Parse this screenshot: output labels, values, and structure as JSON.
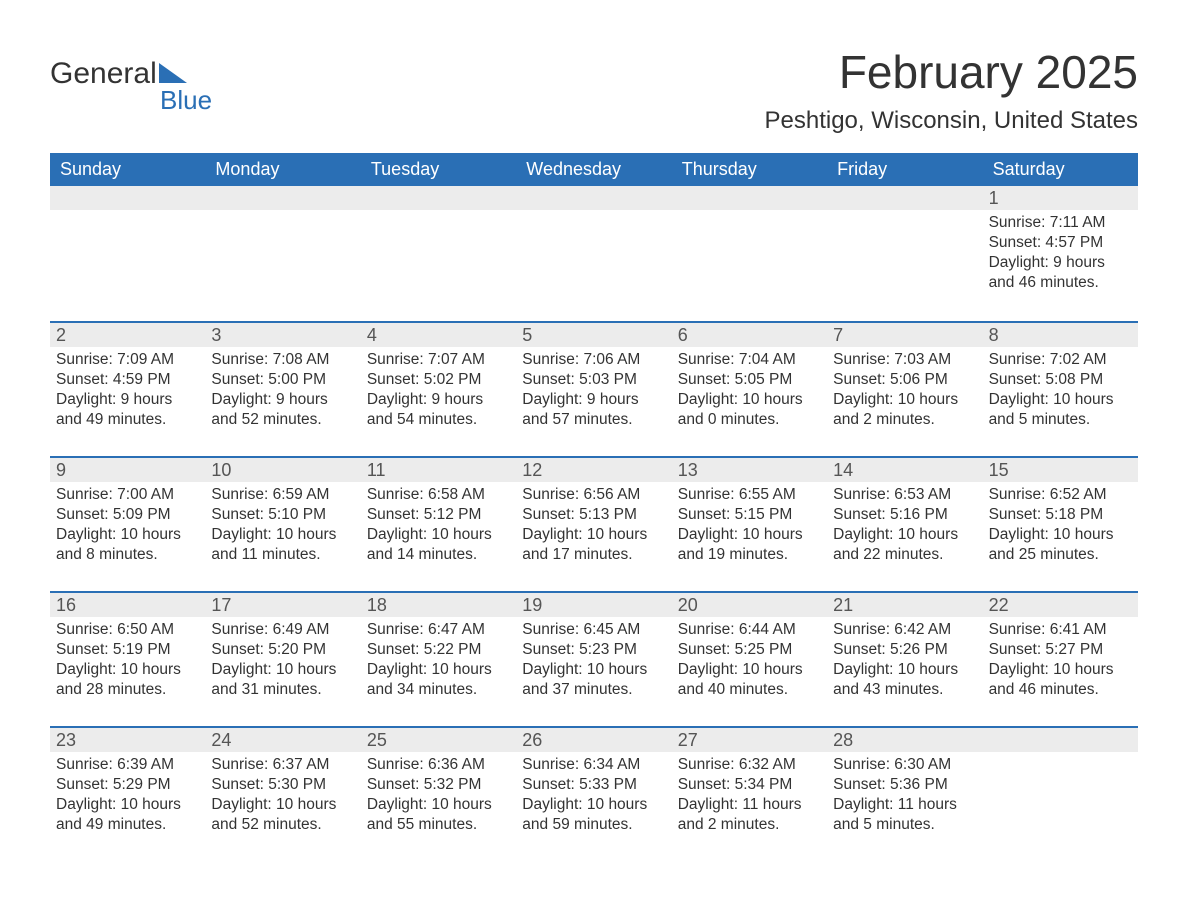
{
  "logo": {
    "word1": "General",
    "word2": "Blue"
  },
  "header": {
    "month_title": "February 2025",
    "location": "Peshtigo, Wisconsin, United States"
  },
  "colors": {
    "header_bg": "#2a6fb5",
    "header_text": "#ffffff",
    "daybar_bg": "#ececec",
    "row_divider": "#2a6fb5",
    "body_text": "#333333"
  },
  "weekdays": [
    "Sunday",
    "Monday",
    "Tuesday",
    "Wednesday",
    "Thursday",
    "Friday",
    "Saturday"
  ],
  "weeks": [
    [
      {
        "day": "",
        "sunrise": "",
        "sunset": "",
        "daylight": ""
      },
      {
        "day": "",
        "sunrise": "",
        "sunset": "",
        "daylight": ""
      },
      {
        "day": "",
        "sunrise": "",
        "sunset": "",
        "daylight": ""
      },
      {
        "day": "",
        "sunrise": "",
        "sunset": "",
        "daylight": ""
      },
      {
        "day": "",
        "sunrise": "",
        "sunset": "",
        "daylight": ""
      },
      {
        "day": "",
        "sunrise": "",
        "sunset": "",
        "daylight": ""
      },
      {
        "day": "1",
        "sunrise": "Sunrise: 7:11 AM",
        "sunset": "Sunset: 4:57 PM",
        "daylight": "Daylight: 9 hours and 46 minutes."
      }
    ],
    [
      {
        "day": "2",
        "sunrise": "Sunrise: 7:09 AM",
        "sunset": "Sunset: 4:59 PM",
        "daylight": "Daylight: 9 hours and 49 minutes."
      },
      {
        "day": "3",
        "sunrise": "Sunrise: 7:08 AM",
        "sunset": "Sunset: 5:00 PM",
        "daylight": "Daylight: 9 hours and 52 minutes."
      },
      {
        "day": "4",
        "sunrise": "Sunrise: 7:07 AM",
        "sunset": "Sunset: 5:02 PM",
        "daylight": "Daylight: 9 hours and 54 minutes."
      },
      {
        "day": "5",
        "sunrise": "Sunrise: 7:06 AM",
        "sunset": "Sunset: 5:03 PM",
        "daylight": "Daylight: 9 hours and 57 minutes."
      },
      {
        "day": "6",
        "sunrise": "Sunrise: 7:04 AM",
        "sunset": "Sunset: 5:05 PM",
        "daylight": "Daylight: 10 hours and 0 minutes."
      },
      {
        "day": "7",
        "sunrise": "Sunrise: 7:03 AM",
        "sunset": "Sunset: 5:06 PM",
        "daylight": "Daylight: 10 hours and 2 minutes."
      },
      {
        "day": "8",
        "sunrise": "Sunrise: 7:02 AM",
        "sunset": "Sunset: 5:08 PM",
        "daylight": "Daylight: 10 hours and 5 minutes."
      }
    ],
    [
      {
        "day": "9",
        "sunrise": "Sunrise: 7:00 AM",
        "sunset": "Sunset: 5:09 PM",
        "daylight": "Daylight: 10 hours and 8 minutes."
      },
      {
        "day": "10",
        "sunrise": "Sunrise: 6:59 AM",
        "sunset": "Sunset: 5:10 PM",
        "daylight": "Daylight: 10 hours and 11 minutes."
      },
      {
        "day": "11",
        "sunrise": "Sunrise: 6:58 AM",
        "sunset": "Sunset: 5:12 PM",
        "daylight": "Daylight: 10 hours and 14 minutes."
      },
      {
        "day": "12",
        "sunrise": "Sunrise: 6:56 AM",
        "sunset": "Sunset: 5:13 PM",
        "daylight": "Daylight: 10 hours and 17 minutes."
      },
      {
        "day": "13",
        "sunrise": "Sunrise: 6:55 AM",
        "sunset": "Sunset: 5:15 PM",
        "daylight": "Daylight: 10 hours and 19 minutes."
      },
      {
        "day": "14",
        "sunrise": "Sunrise: 6:53 AM",
        "sunset": "Sunset: 5:16 PM",
        "daylight": "Daylight: 10 hours and 22 minutes."
      },
      {
        "day": "15",
        "sunrise": "Sunrise: 6:52 AM",
        "sunset": "Sunset: 5:18 PM",
        "daylight": "Daylight: 10 hours and 25 minutes."
      }
    ],
    [
      {
        "day": "16",
        "sunrise": "Sunrise: 6:50 AM",
        "sunset": "Sunset: 5:19 PM",
        "daylight": "Daylight: 10 hours and 28 minutes."
      },
      {
        "day": "17",
        "sunrise": "Sunrise: 6:49 AM",
        "sunset": "Sunset: 5:20 PM",
        "daylight": "Daylight: 10 hours and 31 minutes."
      },
      {
        "day": "18",
        "sunrise": "Sunrise: 6:47 AM",
        "sunset": "Sunset: 5:22 PM",
        "daylight": "Daylight: 10 hours and 34 minutes."
      },
      {
        "day": "19",
        "sunrise": "Sunrise: 6:45 AM",
        "sunset": "Sunset: 5:23 PM",
        "daylight": "Daylight: 10 hours and 37 minutes."
      },
      {
        "day": "20",
        "sunrise": "Sunrise: 6:44 AM",
        "sunset": "Sunset: 5:25 PM",
        "daylight": "Daylight: 10 hours and 40 minutes."
      },
      {
        "day": "21",
        "sunrise": "Sunrise: 6:42 AM",
        "sunset": "Sunset: 5:26 PM",
        "daylight": "Daylight: 10 hours and 43 minutes."
      },
      {
        "day": "22",
        "sunrise": "Sunrise: 6:41 AM",
        "sunset": "Sunset: 5:27 PM",
        "daylight": "Daylight: 10 hours and 46 minutes."
      }
    ],
    [
      {
        "day": "23",
        "sunrise": "Sunrise: 6:39 AM",
        "sunset": "Sunset: 5:29 PM",
        "daylight": "Daylight: 10 hours and 49 minutes."
      },
      {
        "day": "24",
        "sunrise": "Sunrise: 6:37 AM",
        "sunset": "Sunset: 5:30 PM",
        "daylight": "Daylight: 10 hours and 52 minutes."
      },
      {
        "day": "25",
        "sunrise": "Sunrise: 6:36 AM",
        "sunset": "Sunset: 5:32 PM",
        "daylight": "Daylight: 10 hours and 55 minutes."
      },
      {
        "day": "26",
        "sunrise": "Sunrise: 6:34 AM",
        "sunset": "Sunset: 5:33 PM",
        "daylight": "Daylight: 10 hours and 59 minutes."
      },
      {
        "day": "27",
        "sunrise": "Sunrise: 6:32 AM",
        "sunset": "Sunset: 5:34 PM",
        "daylight": "Daylight: 11 hours and 2 minutes."
      },
      {
        "day": "28",
        "sunrise": "Sunrise: 6:30 AM",
        "sunset": "Sunset: 5:36 PM",
        "daylight": "Daylight: 11 hours and 5 minutes."
      },
      {
        "day": "",
        "sunrise": "",
        "sunset": "",
        "daylight": ""
      }
    ]
  ]
}
